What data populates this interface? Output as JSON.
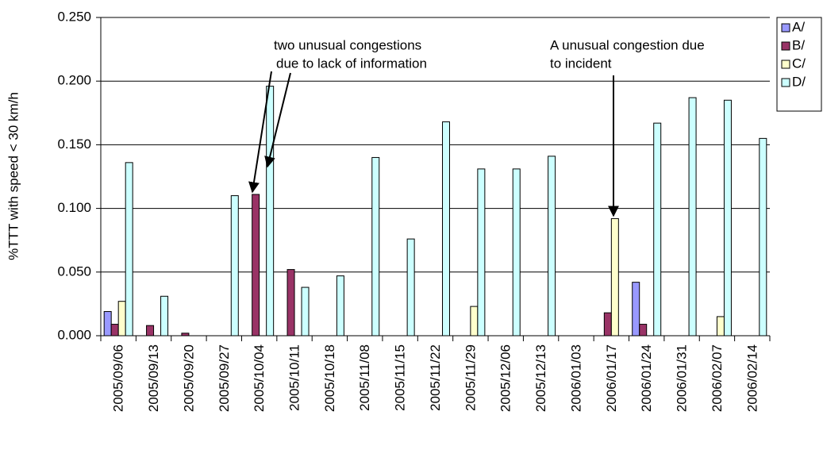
{
  "chart_data": {
    "type": "bar",
    "y_label": "%TTT with speed < 30 km/h",
    "categories": [
      "2005/09/06",
      "2005/09/13",
      "2005/09/20",
      "2005/09/27",
      "2005/10/04",
      "2005/10/11",
      "2005/10/18",
      "2005/11/08",
      "2005/11/15",
      "2005/11/22",
      "2005/11/29",
      "2005/12/06",
      "2005/12/13",
      "2006/01/03",
      "2006/01/17",
      "2006/01/24",
      "2006/01/31",
      "2006/02/07",
      "2006/02/14"
    ],
    "series": [
      {
        "name": "A/",
        "color": "#9999ff",
        "values": [
          0.019,
          0,
          0,
          0,
          0,
          0,
          0,
          0,
          0,
          0,
          0,
          0,
          0,
          0,
          0,
          0.042,
          0,
          0,
          0
        ]
      },
      {
        "name": "B/",
        "color": "#993366",
        "values": [
          0.009,
          0.008,
          0.002,
          0,
          0.111,
          0.052,
          0,
          0,
          0,
          0,
          0,
          0,
          0,
          0,
          0.018,
          0.009,
          0,
          0,
          0
        ]
      },
      {
        "name": "C/",
        "color": "#ffffcc",
        "values": [
          0.027,
          0,
          0,
          0,
          0,
          0,
          0,
          0,
          0,
          0,
          0.023,
          0,
          0,
          0,
          0.092,
          0,
          0,
          0.015,
          0
        ]
      },
      {
        "name": "D/",
        "color": "#ccffff",
        "values": [
          0.136,
          0.031,
          0,
          0.11,
          0.196,
          0.038,
          0.047,
          0.14,
          0.076,
          0.168,
          0.131,
          0.131,
          0.141,
          0,
          0,
          0.167,
          0.187,
          0.185,
          0.155
        ]
      }
    ],
    "ylim": [
      0,
      0.25
    ],
    "yticks": [
      {
        "value": 0,
        "label": "0.000"
      },
      {
        "value": 0.05,
        "label": "0.050"
      },
      {
        "value": 0.1,
        "label": "0.100"
      },
      {
        "value": 0.15,
        "label": "0.150"
      },
      {
        "value": 0.2,
        "label": "0.200"
      },
      {
        "value": 0.25,
        "label": "0.250"
      }
    ],
    "grid": true,
    "legend": "right",
    "annotations": [
      {
        "lines": [
          "two unusual congestions",
          "due to lack of information"
        ]
      },
      {
        "lines": [
          "A unusual congestion due",
          "to incident"
        ]
      }
    ]
  }
}
